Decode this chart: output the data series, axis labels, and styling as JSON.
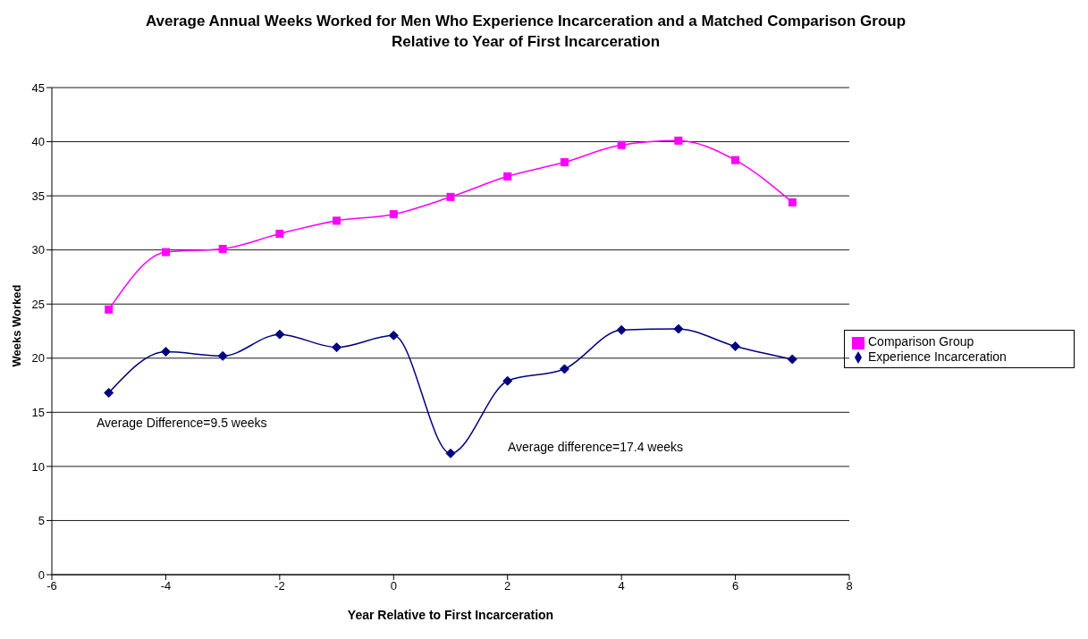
{
  "chart_data": {
    "type": "line",
    "title": "Average Annual Weeks Worked for Men Who Experience Incarceration and a Matched Comparison Group Relative to Year of First Incarceration",
    "xlabel": "Year Relative to First Incarceration",
    "ylabel": "Weeks Worked",
    "x": [
      -5,
      -4,
      -3,
      -2,
      -1,
      0,
      1,
      2,
      3,
      4,
      5,
      6,
      7
    ],
    "series": [
      {
        "name": "Experience Incarceration",
        "color": "#000080",
        "marker": "diamond",
        "values": [
          16.8,
          20.6,
          20.2,
          22.2,
          21.0,
          22.1,
          11.2,
          17.9,
          19.0,
          22.6,
          22.7,
          21.1,
          19.9
        ]
      },
      {
        "name": "Comparison Group",
        "color": "#ff00ff",
        "marker": "square",
        "values": [
          24.5,
          29.8,
          30.1,
          31.5,
          32.7,
          33.3,
          34.9,
          36.8,
          38.1,
          39.7,
          40.1,
          38.3,
          34.4
        ]
      }
    ],
    "xlim": [
      -6,
      8
    ],
    "xticks": [
      -6,
      -4,
      -2,
      0,
      2,
      4,
      6,
      8
    ],
    "ylim": [
      0,
      45
    ],
    "yticks": [
      0,
      5,
      10,
      15,
      20,
      25,
      30,
      35,
      40,
      45
    ],
    "grid": "y",
    "legend": "right",
    "line_style": "solid",
    "annotations": [
      "Average Difference=9.5 weeks",
      "Average difference=17.4 weeks"
    ]
  }
}
